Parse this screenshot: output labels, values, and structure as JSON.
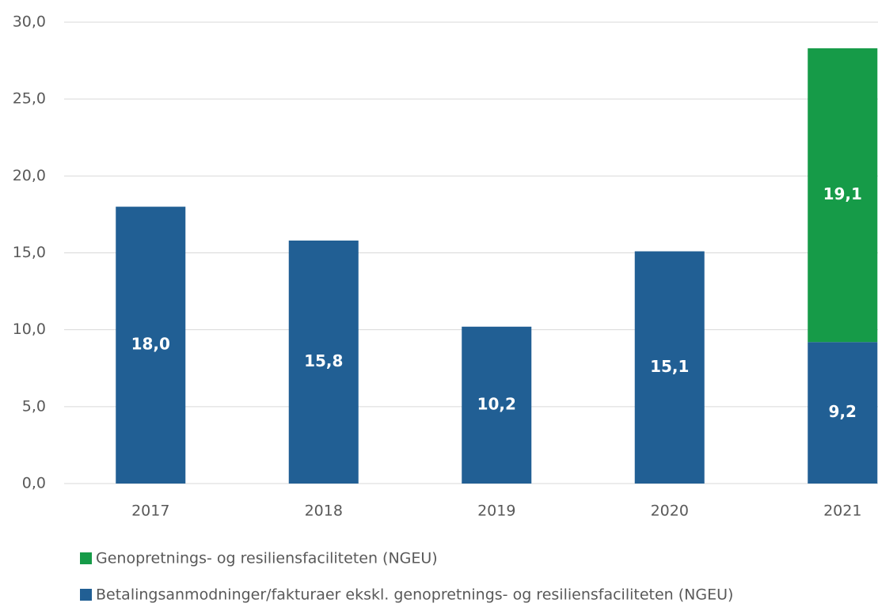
{
  "chart_data": {
    "type": "bar",
    "stacked": true,
    "categories": [
      "2017",
      "2018",
      "2019",
      "2020",
      "2021"
    ],
    "series": [
      {
        "name": "Betalingsanmodninger/fakturaer ekskl. genopretnings- og resiliensfaciliteten (NGEU)",
        "color": "#215f94",
        "values": [
          18.0,
          15.8,
          10.2,
          15.1,
          9.2
        ],
        "value_labels": [
          "18,0",
          "15,8",
          "10,2",
          "15,1",
          "9,2"
        ]
      },
      {
        "name": "Genopretnings- og resiliensfaciliteten (NGEU)",
        "color": "#169b48",
        "values": [
          null,
          null,
          null,
          null,
          19.1
        ],
        "value_labels": [
          null,
          null,
          null,
          null,
          "19,1"
        ]
      }
    ],
    "ylim": [
      0,
      30
    ],
    "yticks": [
      {
        "value": 0,
        "label": "0,0"
      },
      {
        "value": 5,
        "label": "5,0"
      },
      {
        "value": 10,
        "label": "10,0"
      },
      {
        "value": 15,
        "label": "15,0"
      },
      {
        "value": 20,
        "label": "20,0"
      },
      {
        "value": 25,
        "label": "25,0"
      },
      {
        "value": 30,
        "label": "30,0"
      }
    ],
    "grid": true,
    "legend": "bottom"
  }
}
